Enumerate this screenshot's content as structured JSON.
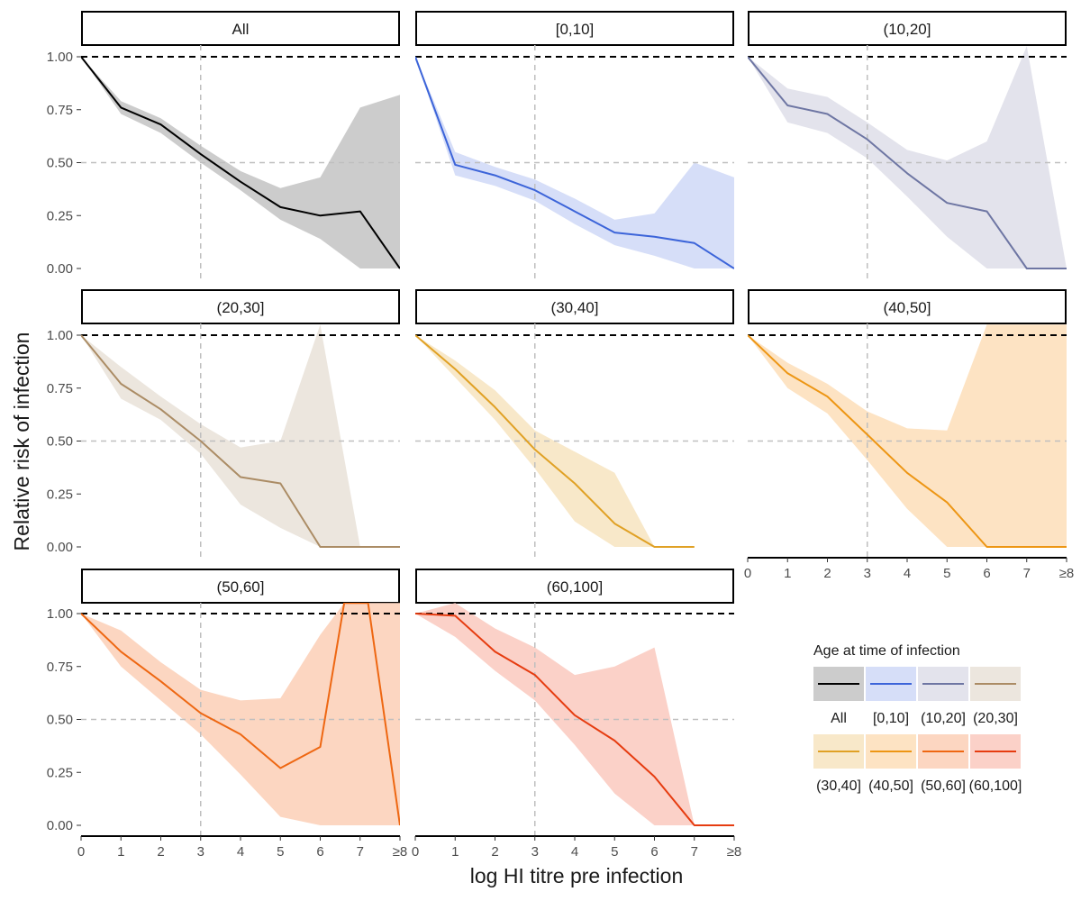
{
  "chart_data": {
    "type": "line",
    "xlabel": "log HI titre pre infection",
    "ylabel": "Relative risk of infection",
    "x_ticks": [
      "0",
      "1",
      "2",
      "3",
      "4",
      "5",
      "6",
      "7",
      "≥8"
    ],
    "y_ticks": [
      "0.00",
      "0.25",
      "0.50",
      "0.75",
      "1.00"
    ],
    "ylim": [
      0,
      1.05
    ],
    "xlim": [
      0,
      8
    ],
    "reference_lines": {
      "horizontal": [
        1.0,
        0.5
      ],
      "vertical": [
        3
      ]
    },
    "legend": {
      "title": "Age at time of infection",
      "position": "bottom-right"
    },
    "panels": [
      {
        "label": "All",
        "color": "#000000",
        "fill": "#cccccc",
        "x": [
          0,
          1,
          2,
          3,
          4,
          5,
          6,
          7,
          8
        ],
        "values": [
          1.0,
          0.76,
          0.68,
          0.54,
          0.41,
          0.29,
          0.25,
          0.27,
          0.0
        ],
        "lower": [
          1.0,
          0.73,
          0.64,
          0.5,
          0.37,
          0.23,
          0.14,
          0.0,
          0.0
        ],
        "upper": [
          1.0,
          0.79,
          0.71,
          0.58,
          0.46,
          0.38,
          0.43,
          0.76,
          0.82
        ]
      },
      {
        "label": "[0,10]",
        "color": "#3c64d9",
        "fill": "#d6def8",
        "x": [
          0,
          1,
          2,
          3,
          4,
          5,
          6,
          7,
          8
        ],
        "values": [
          1.0,
          0.49,
          0.44,
          0.37,
          0.27,
          0.17,
          0.15,
          0.12,
          0.0
        ],
        "lower": [
          1.0,
          0.44,
          0.39,
          0.32,
          0.21,
          0.11,
          0.06,
          0.0,
          0.0
        ],
        "upper": [
          1.0,
          0.55,
          0.48,
          0.42,
          0.33,
          0.23,
          0.26,
          0.5,
          0.43
        ]
      },
      {
        "label": "(10,20]",
        "color": "#6e76a3",
        "fill": "#e3e3ec",
        "x": [
          0,
          1,
          2,
          3,
          4,
          5,
          6,
          7,
          8
        ],
        "values": [
          1.0,
          0.77,
          0.73,
          0.61,
          0.45,
          0.31,
          0.27,
          0.0,
          0.0
        ],
        "lower": [
          1.0,
          0.69,
          0.64,
          0.52,
          0.34,
          0.15,
          0.0,
          0.0,
          0.0
        ],
        "upper": [
          1.0,
          0.85,
          0.81,
          0.69,
          0.56,
          0.51,
          0.6,
          1.05,
          0.0
        ]
      },
      {
        "label": "(20,30]",
        "color": "#ab8c65",
        "fill": "#ece6de",
        "x": [
          0,
          1,
          2,
          3,
          4,
          5,
          6,
          7,
          8
        ],
        "values": [
          1.0,
          0.77,
          0.65,
          0.5,
          0.33,
          0.3,
          0.0,
          0.0,
          0.0
        ],
        "lower": [
          1.0,
          0.7,
          0.6,
          0.44,
          0.2,
          0.09,
          0.0,
          0.0,
          0.0
        ],
        "upper": [
          1.0,
          0.85,
          0.71,
          0.58,
          0.47,
          0.5,
          1.05,
          0.0,
          0.0
        ]
      },
      {
        "label": "(30,40]",
        "color": "#e0a125",
        "fill": "#f8e8c9",
        "x": [
          0,
          1,
          2,
          3,
          4,
          5,
          6,
          7
        ],
        "values": [
          1.0,
          0.84,
          0.66,
          0.46,
          0.3,
          0.11,
          0.0,
          0.0
        ],
        "lower": [
          1.0,
          0.8,
          0.6,
          0.37,
          0.12,
          0.0,
          0.0,
          0.0
        ],
        "upper": [
          1.0,
          0.88,
          0.74,
          0.55,
          0.45,
          0.35,
          0.0,
          0.0
        ]
      },
      {
        "label": "(40,50]",
        "color": "#ed9614",
        "fill": "#fde3c3",
        "x": [
          0,
          1,
          2,
          3,
          4,
          5,
          6,
          7,
          8
        ],
        "values": [
          1.0,
          0.82,
          0.71,
          0.53,
          0.35,
          0.21,
          0.0,
          0.0,
          0.0
        ],
        "lower": [
          1.0,
          0.75,
          0.63,
          0.41,
          0.18,
          0.0,
          0.0,
          0.0,
          0.0
        ],
        "upper": [
          1.0,
          0.87,
          0.77,
          0.64,
          0.56,
          0.55,
          1.05,
          1.05,
          1.05
        ]
      },
      {
        "label": "(50,60]",
        "color": "#ee6712",
        "fill": "#fcd6c1",
        "x": [
          0,
          1,
          2,
          3,
          4,
          5,
          6,
          6.6,
          7.2,
          8
        ],
        "values": [
          1.0,
          0.82,
          0.68,
          0.53,
          0.43,
          0.27,
          0.37,
          1.05,
          1.05,
          0.0
        ],
        "lower": [
          1.0,
          0.75,
          0.59,
          0.43,
          0.24,
          0.04,
          0.0,
          0.0,
          0.0,
          0.0
        ],
        "upper": [
          1.0,
          0.92,
          0.77,
          0.64,
          0.59,
          0.6,
          0.9,
          1.05,
          1.05,
          1.05
        ]
      },
      {
        "label": "(60,100]",
        "color": "#e63c10",
        "fill": "#fbd1c8",
        "x": [
          0,
          1,
          2,
          3,
          4,
          5,
          6,
          7,
          8
        ],
        "values": [
          1.0,
          0.99,
          0.82,
          0.71,
          0.52,
          0.4,
          0.23,
          0.0,
          0.0
        ],
        "lower": [
          1.0,
          0.89,
          0.73,
          0.59,
          0.38,
          0.15,
          0.0,
          0.0,
          0.0
        ],
        "upper": [
          1.0,
          1.05,
          0.93,
          0.84,
          0.71,
          0.75,
          0.84,
          0.0,
          0.0
        ]
      }
    ]
  }
}
